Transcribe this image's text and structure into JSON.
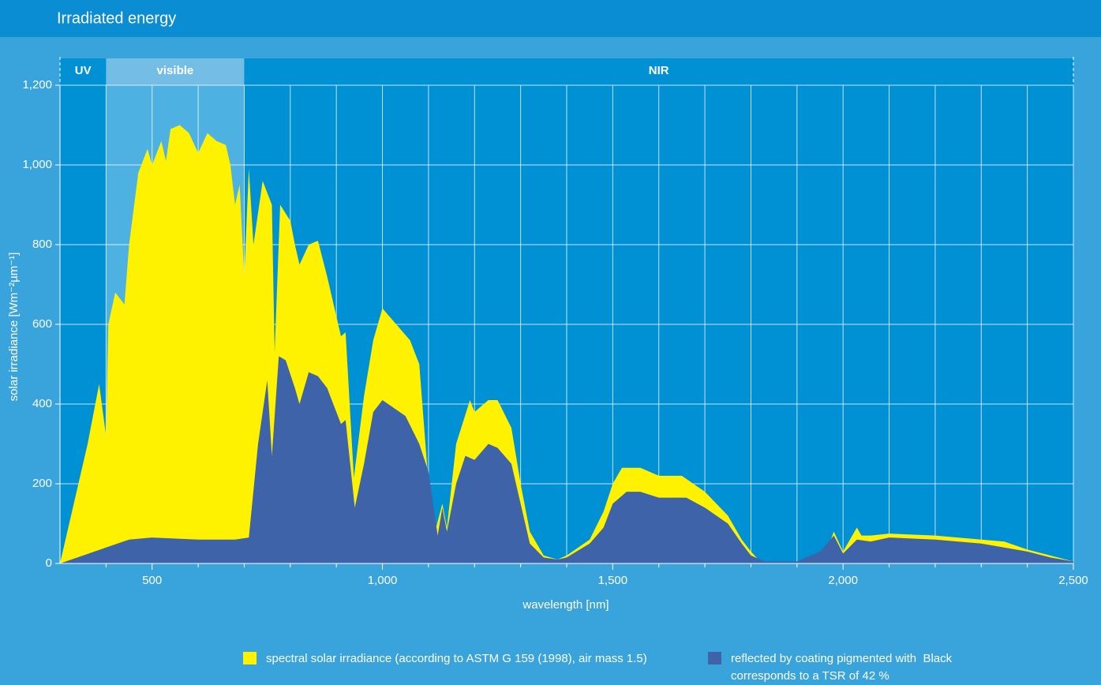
{
  "chart_data": {
    "type": "area",
    "title": "Irradiated energy",
    "x_label": "wavelength [nm]",
    "y_label": "solar irradiance [Wm⁻²µm⁻¹]",
    "xlim": [
      300,
      2500
    ],
    "ylim": [
      0,
      1200
    ],
    "xticks": [
      500,
      {
        "value": 1000,
        "label": "1,000"
      },
      {
        "value": 1500,
        "label": "1,500"
      },
      {
        "value": 2000,
        "label": "2,000"
      },
      {
        "value": 2500,
        "label": "2,500"
      }
    ],
    "xminor_ticks": [
      400,
      600,
      700,
      800,
      900,
      1100,
      1200,
      1300,
      1400,
      1600,
      1700,
      1800,
      1900,
      2100,
      2200,
      2300,
      2400
    ],
    "yticks": [
      0,
      200,
      400,
      600,
      800,
      {
        "value": 1000,
        "label": "1,000"
      },
      {
        "value": 1200,
        "label": "1,200"
      }
    ],
    "grid": true,
    "regions": [
      {
        "label": "UV",
        "from": 300,
        "to": 400,
        "shaded": false
      },
      {
        "label": "visible",
        "from": 400,
        "to": 700,
        "shaded": true
      },
      {
        "label": "NIR",
        "from": 700,
        "to": 2500,
        "shaded": false
      }
    ],
    "series": [
      {
        "name": "spectral solar irradiance (according to ASTM G 159 (1998), air mass 1.5)",
        "color": "#fff200",
        "x": [
          300,
          330,
          360,
          385,
          400,
          405,
          420,
          440,
          450,
          470,
          490,
          500,
          520,
          530,
          540,
          560,
          580,
          600,
          620,
          640,
          660,
          670,
          680,
          690,
          700,
          710,
          720,
          740,
          760,
          766,
          778,
          800,
          810,
          820,
          840,
          860,
          880,
          900,
          910,
          920,
          938,
          960,
          980,
          1000,
          1030,
          1060,
          1080,
          1100,
          1112,
          1130,
          1140,
          1160,
          1190,
          1200,
          1230,
          1250,
          1280,
          1300,
          1320,
          1350,
          1380,
          1400,
          1450,
          1480,
          1500,
          1520,
          1560,
          1600,
          1650,
          1700,
          1750,
          1780,
          1800,
          1820,
          1900,
          1960,
          1980,
          2000,
          2010,
          2030,
          2040,
          2060,
          2100,
          2200,
          2300,
          2350,
          2400,
          2450,
          2500
        ],
        "values": [
          0,
          150,
          300,
          450,
          320,
          600,
          680,
          650,
          800,
          980,
          1040,
          1000,
          1060,
          1010,
          1090,
          1100,
          1080,
          1030,
          1080,
          1060,
          1050,
          1000,
          900,
          950,
          720,
          990,
          800,
          960,
          900,
          530,
          900,
          860,
          800,
          750,
          800,
          810,
          720,
          620,
          570,
          580,
          215,
          420,
          560,
          640,
          600,
          560,
          500,
          200,
          70,
          150,
          90,
          300,
          410,
          380,
          410,
          410,
          340,
          200,
          80,
          20,
          10,
          20,
          60,
          130,
          200,
          240,
          240,
          220,
          220,
          180,
          120,
          60,
          30,
          5,
          5,
          20,
          80,
          30,
          50,
          90,
          70,
          70,
          75,
          70,
          60,
          55,
          35,
          20,
          5
        ]
      },
      {
        "name": "reflected by coating pigmented with  Black",
        "legend_note": "corresponds to a TSR of 42 %",
        "color": "#3f63a8",
        "x": [
          300,
          400,
          450,
          500,
          600,
          680,
          710,
          730,
          750,
          760,
          775,
          790,
          810,
          820,
          840,
          860,
          880,
          900,
          910,
          920,
          940,
          960,
          980,
          1000,
          1050,
          1080,
          1100,
          1120,
          1130,
          1140,
          1160,
          1180,
          1200,
          1230,
          1250,
          1280,
          1300,
          1320,
          1350,
          1380,
          1400,
          1450,
          1480,
          1500,
          1530,
          1560,
          1600,
          1660,
          1700,
          1750,
          1780,
          1800,
          1830,
          1900,
          1950,
          1980,
          2000,
          2030,
          2060,
          2100,
          2200,
          2300,
          2400,
          2450,
          2500
        ],
        "values": [
          0,
          40,
          60,
          65,
          60,
          60,
          65,
          300,
          460,
          270,
          520,
          510,
          440,
          400,
          480,
          470,
          440,
          380,
          350,
          360,
          140,
          250,
          380,
          410,
          370,
          300,
          230,
          70,
          140,
          80,
          200,
          270,
          260,
          300,
          290,
          250,
          150,
          50,
          15,
          10,
          15,
          50,
          90,
          150,
          180,
          180,
          165,
          165,
          140,
          100,
          50,
          20,
          5,
          5,
          30,
          70,
          25,
          60,
          55,
          65,
          60,
          50,
          30,
          15,
          5
        ]
      }
    ]
  }
}
